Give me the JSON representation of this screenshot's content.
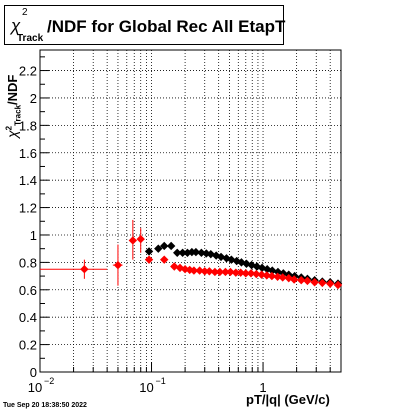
{
  "title": {
    "symbol": "χ",
    "sup": "2",
    "sub": "Track",
    "rest": "/NDF for Global Rec All EtapT"
  },
  "ylabel": {
    "symbol": "χ",
    "sup": "2",
    "sub": "Track",
    "rest": "/NDF"
  },
  "xlabel": "pT/|q| (GeV/c)",
  "timestamp": "Tue Sep 20 18:38:50 2022",
  "chart_data": {
    "type": "scatter",
    "x_scale": "log",
    "xlim": [
      0.01,
      5
    ],
    "ylim": [
      0,
      2.35
    ],
    "grid": true,
    "y_ticks": [
      "0",
      "0.2",
      "0.4",
      "0.6",
      "0.8",
      "1",
      "1.2",
      "1.4",
      "1.6",
      "1.8",
      "2",
      "2.2"
    ],
    "x_ticks": [
      {
        "base": "10",
        "exp": "−2",
        "value": 0.01
      },
      {
        "base": "10",
        "exp": "−1",
        "value": 0.1
      },
      {
        "base": "1",
        "exp": "",
        "value": 1
      }
    ],
    "series": [
      {
        "color": "#ff0000",
        "points": [
          {
            "x": 0.025,
            "y": 0.75,
            "xlo": 0.01,
            "xhi": 0.04,
            "ylo": 0.68,
            "yhi": 0.82
          },
          {
            "x": 0.05,
            "y": 0.78,
            "xlo": 0.045,
            "xhi": 0.055,
            "ylo": 0.63,
            "yhi": 0.93
          },
          {
            "x": 0.068,
            "y": 0.96,
            "xlo": 0.064,
            "xhi": 0.072,
            "ylo": 0.82,
            "yhi": 1.11
          },
          {
            "x": 0.08,
            "y": 0.97,
            "xlo": 0.076,
            "xhi": 0.084,
            "ylo": 0.87,
            "yhi": 1.05
          },
          {
            "x": 0.095,
            "y": 0.82,
            "xlo": 0.09,
            "xhi": 0.1,
            "ylo": 0.8,
            "yhi": 0.84
          },
          {
            "x": 0.13,
            "y": 0.82,
            "xlo": 0.125,
            "xhi": 0.135,
            "ylo": 0.8,
            "yhi": 0.84
          },
          {
            "x": 0.16,
            "y": 0.77,
            "xlo": 0.155,
            "xhi": 0.165,
            "ylo": 0.76,
            "yhi": 0.78
          },
          {
            "x": 0.18,
            "y": 0.76
          },
          {
            "x": 0.2,
            "y": 0.75
          },
          {
            "x": 0.22,
            "y": 0.745
          },
          {
            "x": 0.24,
            "y": 0.74
          },
          {
            "x": 0.27,
            "y": 0.74
          },
          {
            "x": 0.3,
            "y": 0.735
          },
          {
            "x": 0.33,
            "y": 0.735
          },
          {
            "x": 0.37,
            "y": 0.73
          },
          {
            "x": 0.41,
            "y": 0.73
          },
          {
            "x": 0.46,
            "y": 0.73
          },
          {
            "x": 0.51,
            "y": 0.73
          },
          {
            "x": 0.57,
            "y": 0.725
          },
          {
            "x": 0.63,
            "y": 0.725
          },
          {
            "x": 0.7,
            "y": 0.72
          },
          {
            "x": 0.78,
            "y": 0.72
          },
          {
            "x": 0.87,
            "y": 0.715
          },
          {
            "x": 0.97,
            "y": 0.71
          },
          {
            "x": 1.08,
            "y": 0.705
          },
          {
            "x": 1.2,
            "y": 0.7
          },
          {
            "x": 1.35,
            "y": 0.695
          },
          {
            "x": 1.5,
            "y": 0.69
          },
          {
            "x": 1.7,
            "y": 0.685
          },
          {
            "x": 1.9,
            "y": 0.675
          },
          {
            "x": 2.2,
            "y": 0.67
          },
          {
            "x": 2.5,
            "y": 0.665
          },
          {
            "x": 2.9,
            "y": 0.655
          },
          {
            "x": 3.4,
            "y": 0.65
          },
          {
            "x": 4.0,
            "y": 0.645
          },
          {
            "x": 4.7,
            "y": 0.635
          }
        ]
      },
      {
        "color": "#000000",
        "points": [
          {
            "x": 0.095,
            "y": 0.88
          },
          {
            "x": 0.115,
            "y": 0.9
          },
          {
            "x": 0.13,
            "y": 0.92
          },
          {
            "x": 0.15,
            "y": 0.92
          },
          {
            "x": 0.17,
            "y": 0.87
          },
          {
            "x": 0.19,
            "y": 0.87
          },
          {
            "x": 0.21,
            "y": 0.87
          },
          {
            "x": 0.23,
            "y": 0.875
          },
          {
            "x": 0.25,
            "y": 0.875
          },
          {
            "x": 0.28,
            "y": 0.87
          },
          {
            "x": 0.31,
            "y": 0.865
          },
          {
            "x": 0.34,
            "y": 0.86
          },
          {
            "x": 0.38,
            "y": 0.85
          },
          {
            "x": 0.42,
            "y": 0.84
          },
          {
            "x": 0.47,
            "y": 0.83
          },
          {
            "x": 0.52,
            "y": 0.82
          },
          {
            "x": 0.58,
            "y": 0.81
          },
          {
            "x": 0.64,
            "y": 0.8
          },
          {
            "x": 0.71,
            "y": 0.79
          },
          {
            "x": 0.79,
            "y": 0.78
          },
          {
            "x": 0.88,
            "y": 0.77
          },
          {
            "x": 0.98,
            "y": 0.76
          },
          {
            "x": 1.09,
            "y": 0.75
          },
          {
            "x": 1.21,
            "y": 0.74
          },
          {
            "x": 1.36,
            "y": 0.73
          },
          {
            "x": 1.52,
            "y": 0.72
          },
          {
            "x": 1.7,
            "y": 0.71
          },
          {
            "x": 1.92,
            "y": 0.7
          },
          {
            "x": 2.2,
            "y": 0.69
          },
          {
            "x": 2.5,
            "y": 0.68
          },
          {
            "x": 2.9,
            "y": 0.67
          },
          {
            "x": 3.4,
            "y": 0.66
          },
          {
            "x": 4.0,
            "y": 0.655
          },
          {
            "x": 4.7,
            "y": 0.645
          }
        ]
      }
    ]
  }
}
